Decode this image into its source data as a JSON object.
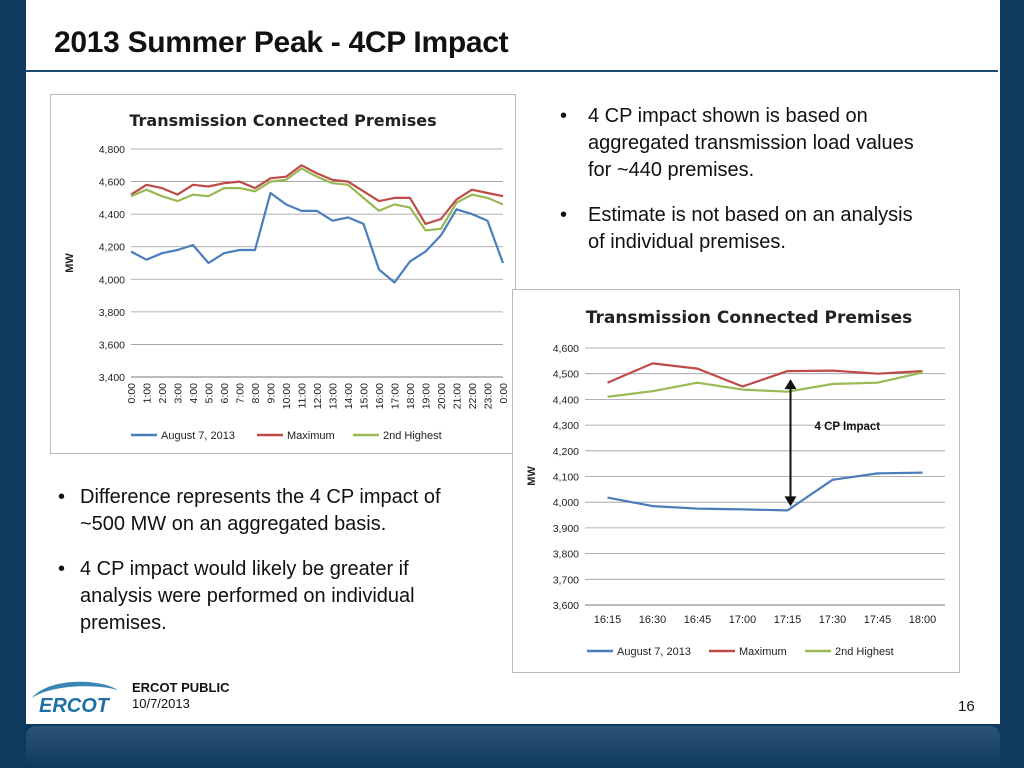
{
  "slide": {
    "title": "2013 Summer Peak - 4CP Impact",
    "page_number": "16",
    "footer_label": "ERCOT PUBLIC",
    "footer_date": "10/7/2013",
    "logo_text": "ERCOT"
  },
  "right_bullets": [
    "4 CP impact shown is based on aggregated transmission load values for ~440 premises.",
    "Estimate is not based on an analysis of individual premises."
  ],
  "left_bullets": [
    "Difference represents the 4 CP impact of ~500 MW on an aggregated basis.",
    "4 CP impact would likely be greater if analysis were performed on individual premises."
  ],
  "annotation": "4 CP Impact",
  "colors": {
    "blue": "#4a7ebb",
    "red": "#be4b48",
    "green": "#98b954"
  },
  "chart_data": [
    {
      "type": "line",
      "title": "Transmission Connected Premises",
      "ylabel": "MW",
      "ylim": [
        3400,
        4800
      ],
      "yticks": [
        "3,400",
        "3,600",
        "3,800",
        "4,000",
        "4,200",
        "4,400",
        "4,600",
        "4,800"
      ],
      "ytick_values": [
        3400,
        3600,
        3800,
        4000,
        4200,
        4400,
        4600,
        4800
      ],
      "categories": [
        "0:00",
        "1:00",
        "2:00",
        "3:00",
        "4:00",
        "5:00",
        "6:00",
        "7:00",
        "8:00",
        "9:00",
        "10:00",
        "11:00",
        "12:00",
        "13:00",
        "14:00",
        "15:00",
        "16:00",
        "17:00",
        "18:00",
        "19:00",
        "20:00",
        "21:00",
        "22:00",
        "23:00",
        "0:00"
      ],
      "legend_position": "bottom",
      "series": [
        {
          "name": "August 7, 2013",
          "values": [
            4170,
            4120,
            4160,
            4180,
            4210,
            4100,
            4160,
            4180,
            4180,
            4530,
            4460,
            4420,
            4420,
            4360,
            4380,
            4340,
            4060,
            3980,
            4110,
            4170,
            4270,
            4430,
            4400,
            4360,
            4100
          ]
        },
        {
          "name": "Maximum",
          "values": [
            4520,
            4580,
            4560,
            4520,
            4580,
            4570,
            4590,
            4600,
            4560,
            4620,
            4630,
            4700,
            4650,
            4610,
            4600,
            4540,
            4480,
            4500,
            4500,
            4340,
            4370,
            4490,
            4550,
            4530,
            4510
          ]
        },
        {
          "name": "2nd Highest",
          "values": [
            4510,
            4550,
            4510,
            4480,
            4520,
            4510,
            4560,
            4560,
            4540,
            4600,
            4610,
            4680,
            4630,
            4590,
            4580,
            4500,
            4420,
            4460,
            4440,
            4300,
            4310,
            4470,
            4520,
            4500,
            4460
          ]
        }
      ]
    },
    {
      "type": "line",
      "title": "Transmission Connected Premises",
      "ylabel": "MW",
      "ylim": [
        3600,
        4600
      ],
      "yticks": [
        "3,600",
        "3,700",
        "3,800",
        "3,900",
        "4,000",
        "4,100",
        "4,200",
        "4,300",
        "4,400",
        "4,500",
        "4,600"
      ],
      "ytick_values": [
        3600,
        3700,
        3800,
        3900,
        4000,
        4100,
        4200,
        4300,
        4400,
        4500,
        4600
      ],
      "categories": [
        "16:15",
        "16:30",
        "16:45",
        "17:00",
        "17:15",
        "17:30",
        "17:45",
        "18:00"
      ],
      "legend_position": "bottom",
      "series": [
        {
          "name": "August 7, 2013",
          "values": [
            4018,
            3985,
            3975,
            3972,
            3968,
            4087,
            4112,
            4115
          ]
        },
        {
          "name": "Maximum",
          "values": [
            4465,
            4540,
            4520,
            4450,
            4510,
            4512,
            4500,
            4510
          ]
        },
        {
          "name": "2nd Highest",
          "values": [
            4410,
            4432,
            4465,
            4438,
            4430,
            4460,
            4465,
            4505
          ]
        }
      ]
    }
  ]
}
